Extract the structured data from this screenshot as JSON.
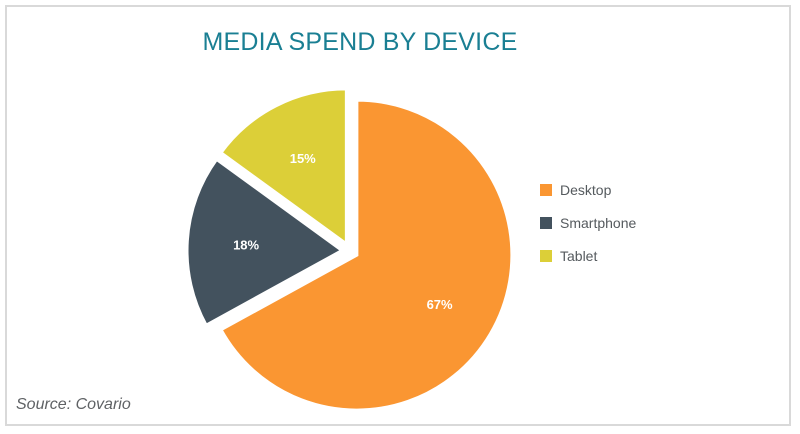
{
  "chart_data": {
    "type": "pie",
    "title": "MEDIA SPEND BY DEVICE",
    "categories": [
      "Desktop",
      "Smartphone",
      "Tablet"
    ],
    "values": [
      67,
      18,
      15
    ],
    "value_labels": [
      "67%",
      "18%",
      "15%"
    ],
    "colors": [
      "#fa9632",
      "#43525e",
      "#dccf38"
    ],
    "legend_position": "right"
  },
  "source": "Source: Covario"
}
